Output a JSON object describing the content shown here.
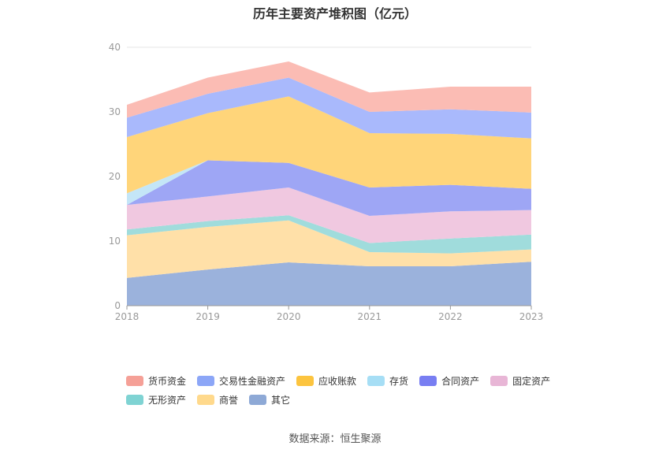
{
  "chart_data": {
    "type": "area",
    "stacked": true,
    "title": "历年主要资产堆积图（亿元）",
    "categories": [
      "2018",
      "2019",
      "2020",
      "2021",
      "2022",
      "2023"
    ],
    "y_ticks": [
      "0",
      "10",
      "20",
      "30",
      "40"
    ],
    "ylim": [
      0,
      40
    ],
    "grid": true,
    "legend_position": "bottom",
    "series": [
      {
        "name": "其它",
        "color": "#9bb2dc",
        "values": [
          4.3,
          5.6,
          6.7,
          6.1,
          6.1,
          6.8
        ]
      },
      {
        "name": "商誉",
        "color": "#ffe0a8",
        "values": [
          6.6,
          6.6,
          6.5,
          2.2,
          2.0,
          1.9
        ]
      },
      {
        "name": "无形资产",
        "color": "#a0dcdc",
        "values": [
          0.9,
          0.9,
          0.8,
          1.4,
          2.3,
          2.3
        ]
      },
      {
        "name": "固定资产",
        "color": "#f0c8e0",
        "values": [
          3.8,
          3.8,
          4.3,
          4.2,
          4.2,
          3.8
        ]
      },
      {
        "name": "合同资产",
        "color": "#9ea6f5",
        "values": [
          0.0,
          5.6,
          3.8,
          4.4,
          4.1,
          3.3
        ]
      },
      {
        "name": "存货",
        "color": "#c4e6f7",
        "values": [
          1.8,
          0.0,
          0.0,
          0.0,
          0.0,
          0.0
        ]
      },
      {
        "name": "应收账款",
        "color": "#ffd57a",
        "values": [
          8.7,
          7.3,
          10.3,
          8.4,
          7.9,
          7.8
        ]
      },
      {
        "name": "交易性金融资产",
        "color": "#a9b9fc",
        "values": [
          3.0,
          3.0,
          2.9,
          3.3,
          3.8,
          4.0
        ]
      },
      {
        "name": "货币资金",
        "color": "#fbbcb4",
        "values": [
          2.0,
          2.5,
          2.5,
          3.0,
          3.5,
          4.0
        ]
      }
    ],
    "legend": [
      {
        "name": "货币资金",
        "color": "#f5a097"
      },
      {
        "name": "交易性金融资产",
        "color": "#8ca6f7"
      },
      {
        "name": "应收账款",
        "color": "#fcc43f"
      },
      {
        "name": "存货",
        "color": "#a6def5"
      },
      {
        "name": "合同资产",
        "color": "#787ef2"
      },
      {
        "name": "固定资产",
        "color": "#e8b6d6"
      },
      {
        "name": "无形资产",
        "color": "#7fd3d3"
      },
      {
        "name": "商誉",
        "color": "#ffd98c"
      },
      {
        "name": "其它",
        "color": "#8ea9d6"
      }
    ]
  },
  "source_text": "数据来源：恒生聚源"
}
